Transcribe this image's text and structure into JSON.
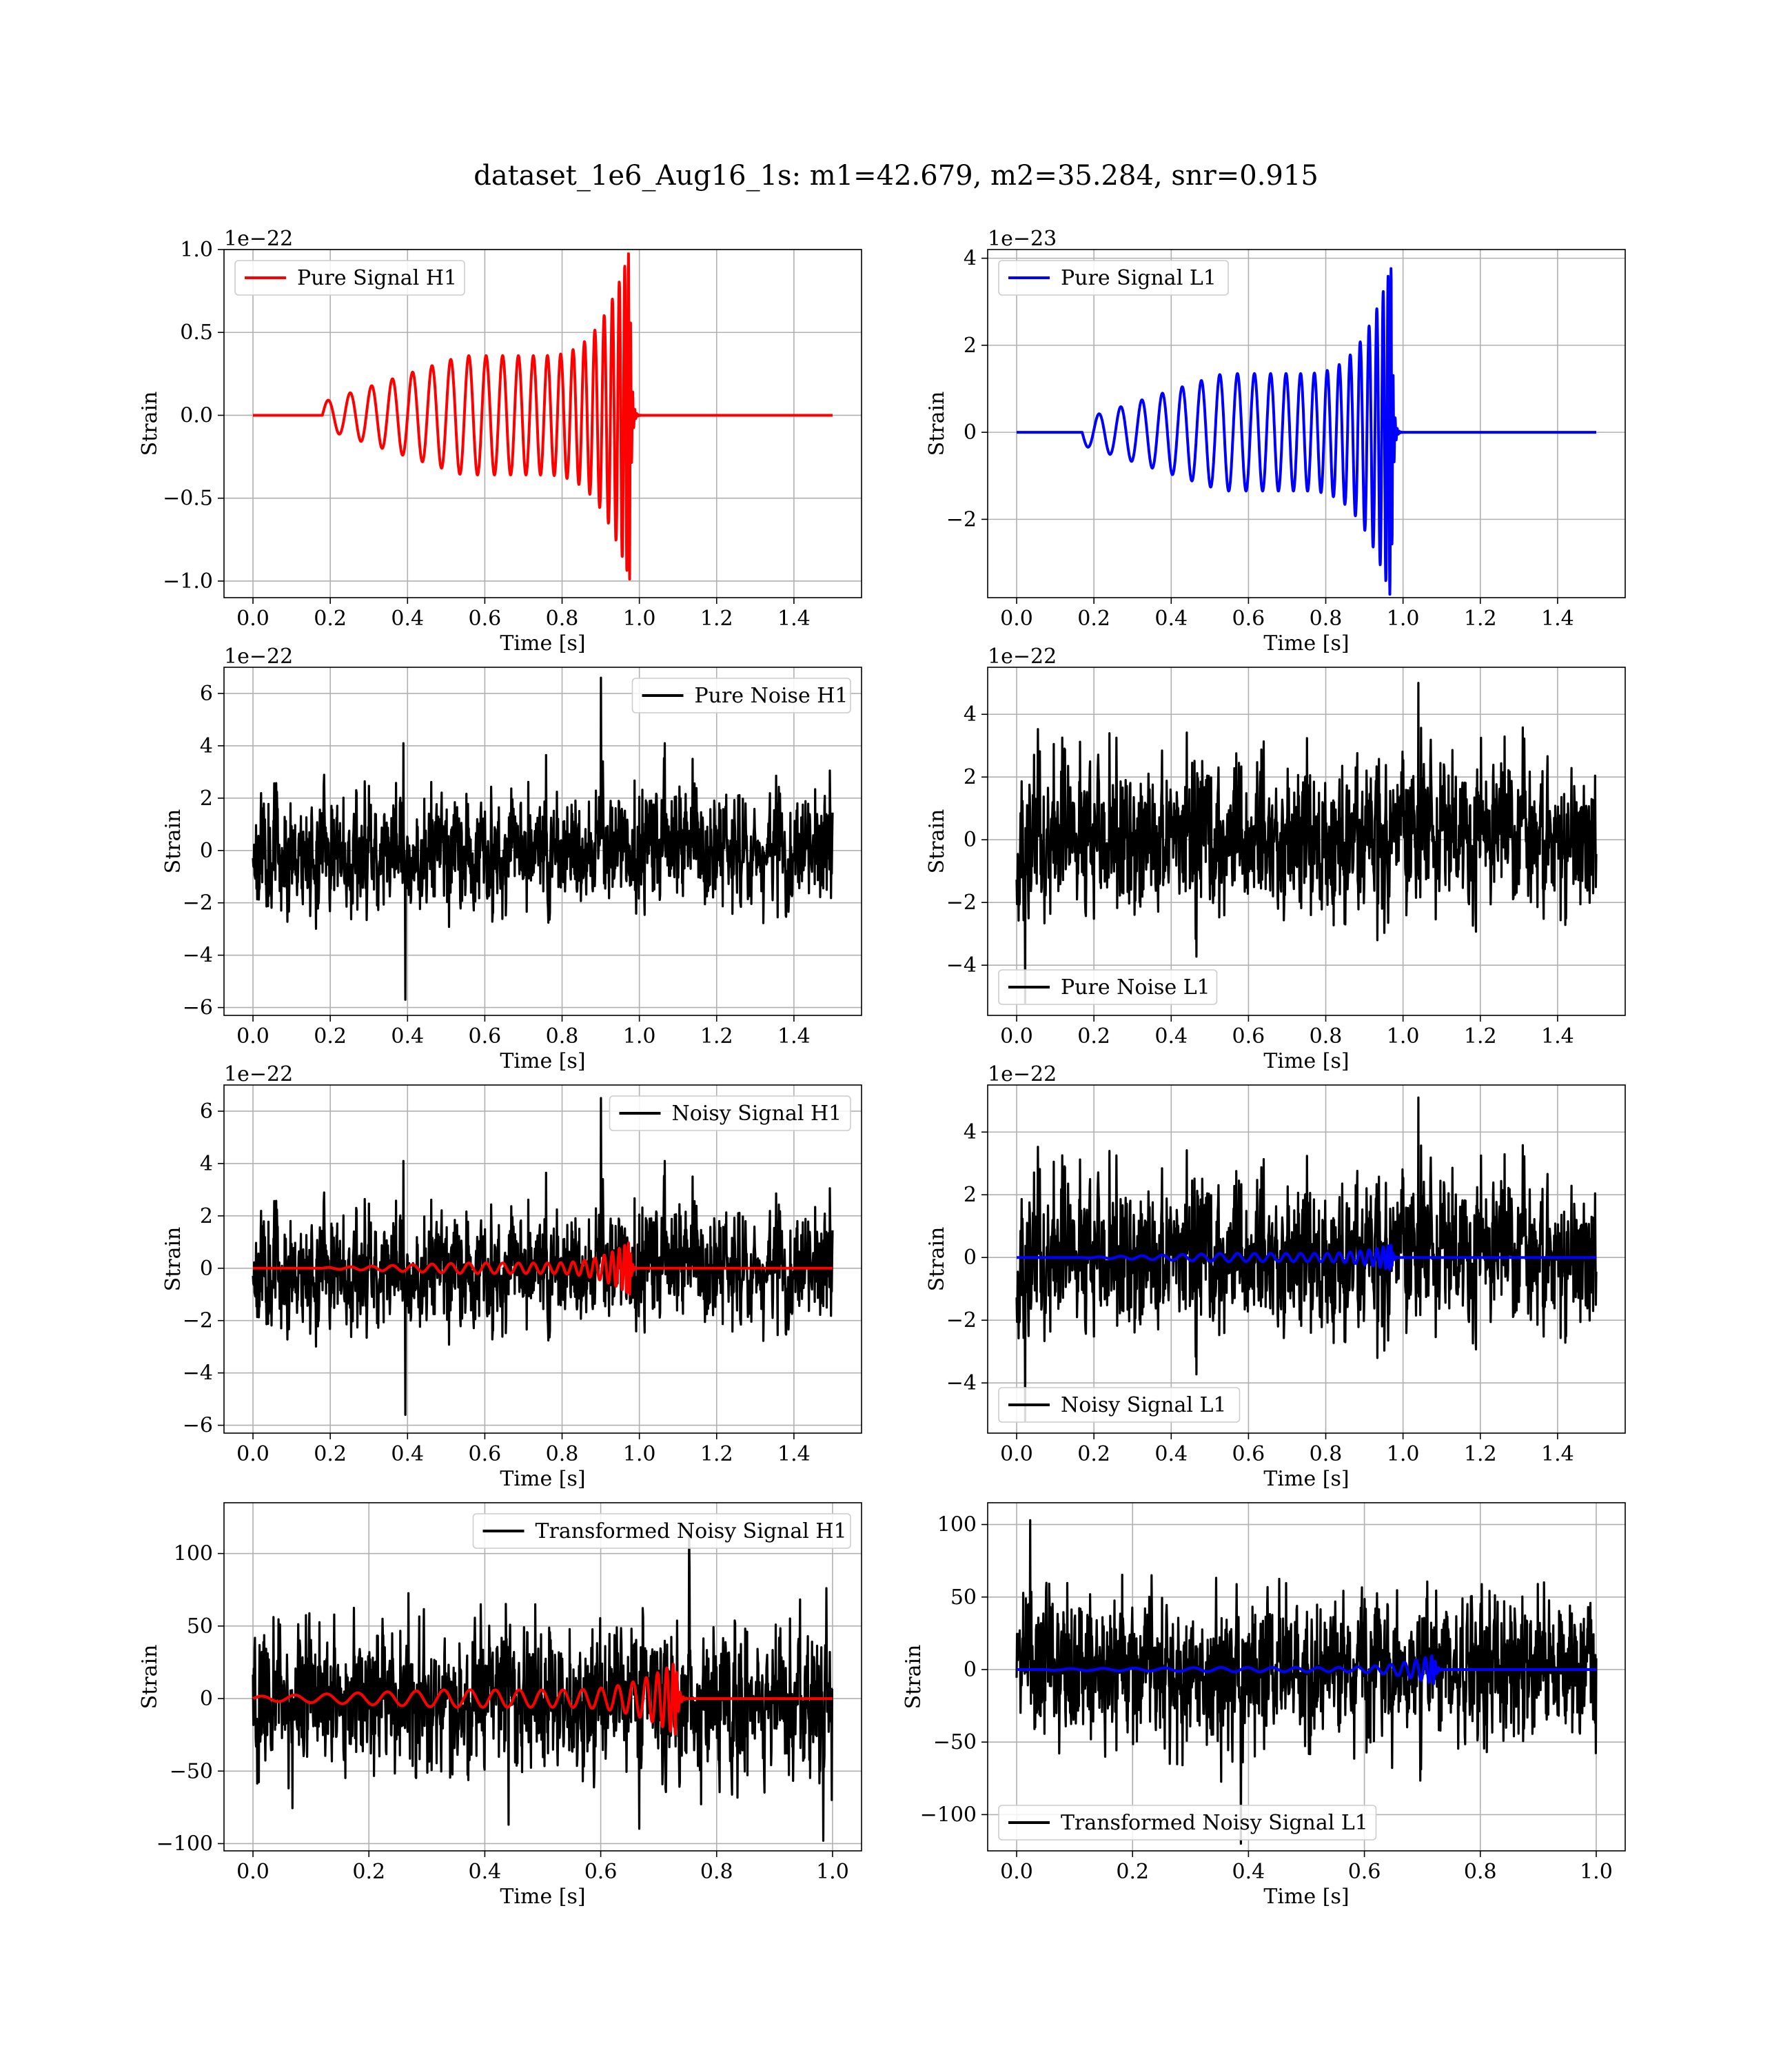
{
  "figure": {
    "title": "dataset_1e6_Aug16_1s: m1=42.679, m2=35.284, snr=0.915"
  },
  "colors": {
    "h1_signal": "#ff0000",
    "l1_signal": "#0000ff",
    "noise": "#000000",
    "grid": "#b0b0b0"
  },
  "chart_data": [
    {
      "type": "line",
      "xlabel": "Time [s]",
      "ylabel": "Strain",
      "offset_text": "1e−22",
      "xlim": [
        -0.075,
        1.575
      ],
      "ylim": [
        -1.1,
        1.0
      ],
      "grid": true,
      "legend_placement": "upper-left",
      "xticks": [
        0,
        0.2,
        0.4,
        0.6,
        0.8,
        1.0,
        1.2,
        1.4
      ],
      "xtick_labels": [
        "0.0",
        "0.2",
        "0.4",
        "0.6",
        "0.8",
        "1.0",
        "1.2",
        "1.4"
      ],
      "yticks": [
        -1.0,
        -0.5,
        0.0,
        0.5,
        1.0
      ],
      "ytick_labels": [
        "−1.0",
        "−0.5",
        "0.0",
        "0.5",
        "1.0"
      ],
      "series": [
        {
          "name": "Pure Signal H1",
          "color": "#ff0000",
          "kind": "chirp",
          "x_range": [
            0,
            1.5
          ],
          "onset": 0.18,
          "merger": 0.975,
          "start_amp": 0.08,
          "inspiral_amp": 0.36,
          "peak_amp": 1.0,
          "sign": 1,
          "seed": 1
        }
      ]
    },
    {
      "type": "line",
      "xlabel": "Time [s]",
      "ylabel": "Strain",
      "offset_text": "1e−23",
      "xlim": [
        -0.075,
        1.575
      ],
      "ylim": [
        -3.8,
        4.2
      ],
      "grid": true,
      "legend_placement": "upper-left",
      "xticks": [
        0,
        0.2,
        0.4,
        0.6,
        0.8,
        1.0,
        1.2,
        1.4
      ],
      "xtick_labels": [
        "0.0",
        "0.2",
        "0.4",
        "0.6",
        "0.8",
        "1.0",
        "1.2",
        "1.4"
      ],
      "yticks": [
        -2,
        0,
        2,
        4
      ],
      "ytick_labels": [
        "−2",
        "0",
        "2",
        "4"
      ],
      "series": [
        {
          "name": "Pure Signal L1",
          "color": "#0000ff",
          "kind": "chirp",
          "x_range": [
            0,
            1.5
          ],
          "onset": 0.17,
          "merger": 0.97,
          "start_amp": 0.3,
          "inspiral_amp": 1.35,
          "peak_amp": 3.85,
          "sign": -1,
          "seed": 2
        }
      ]
    },
    {
      "type": "line",
      "xlabel": "Time [s]",
      "ylabel": "Strain",
      "offset_text": "1e−22",
      "xlim": [
        -0.075,
        1.575
      ],
      "ylim": [
        -6.3,
        7.0
      ],
      "grid": true,
      "legend_placement": "upper-right",
      "xticks": [
        0,
        0.2,
        0.4,
        0.6,
        0.8,
        1.0,
        1.2,
        1.4
      ],
      "xtick_labels": [
        "0.0",
        "0.2",
        "0.4",
        "0.6",
        "0.8",
        "1.0",
        "1.2",
        "1.4"
      ],
      "yticks": [
        -6,
        -4,
        -2,
        0,
        2,
        4,
        6
      ],
      "ytick_labels": [
        "−6",
        "−4",
        "−2",
        "0",
        "2",
        "4",
        "6"
      ],
      "series": [
        {
          "name": "Pure Noise H1",
          "color": "#000000",
          "kind": "noise",
          "x_range": [
            0,
            1.5
          ],
          "sigma": 1.3,
          "max": 6.6,
          "min": -5.7,
          "seed": 11
        }
      ]
    },
    {
      "type": "line",
      "xlabel": "Time [s]",
      "ylabel": "Strain",
      "offset_text": "1e−22",
      "xlim": [
        -0.075,
        1.575
      ],
      "ylim": [
        -5.6,
        5.5
      ],
      "grid": true,
      "legend_placement": "lower-left",
      "xticks": [
        0,
        0.2,
        0.4,
        0.6,
        0.8,
        1.0,
        1.2,
        1.4
      ],
      "xtick_labels": [
        "0.0",
        "0.2",
        "0.4",
        "0.6",
        "0.8",
        "1.0",
        "1.2",
        "1.4"
      ],
      "yticks": [
        -4,
        -2,
        0,
        2,
        4
      ],
      "ytick_labels": [
        "−4",
        "−2",
        "0",
        "2",
        "4"
      ],
      "series": [
        {
          "name": "Pure Noise L1",
          "color": "#000000",
          "kind": "noise",
          "x_range": [
            0,
            1.5
          ],
          "sigma": 1.4,
          "max": 5.0,
          "min": -5.2,
          "seed": 12
        }
      ]
    },
    {
      "type": "line",
      "xlabel": "Time [s]",
      "ylabel": "Strain",
      "offset_text": "1e−22",
      "xlim": [
        -0.075,
        1.575
      ],
      "ylim": [
        -6.3,
        7.0
      ],
      "grid": true,
      "legend_placement": "upper-right",
      "xticks": [
        0,
        0.2,
        0.4,
        0.6,
        0.8,
        1.0,
        1.2,
        1.4
      ],
      "xtick_labels": [
        "0.0",
        "0.2",
        "0.4",
        "0.6",
        "0.8",
        "1.0",
        "1.2",
        "1.4"
      ],
      "yticks": [
        -6,
        -4,
        -2,
        0,
        2,
        4,
        6
      ],
      "ytick_labels": [
        "−6",
        "−4",
        "−2",
        "0",
        "2",
        "4",
        "6"
      ],
      "series": [
        {
          "name": "Noisy Signal H1",
          "color": "#000000",
          "kind": "noise",
          "x_range": [
            0,
            1.5
          ],
          "sigma": 1.3,
          "max": 6.5,
          "min": -5.6,
          "seed": 11
        },
        {
          "name": "",
          "color": "#ff0000",
          "kind": "chirp",
          "x_range": [
            0,
            1.5
          ],
          "onset": 0.18,
          "merger": 0.975,
          "start_amp": 0.02,
          "inspiral_amp": 0.2,
          "peak_amp": 1.0,
          "sign": 1,
          "seed": 1
        }
      ]
    },
    {
      "type": "line",
      "xlabel": "Time [s]",
      "ylabel": "Strain",
      "offset_text": "1e−22",
      "xlim": [
        -0.075,
        1.575
      ],
      "ylim": [
        -5.6,
        5.5
      ],
      "grid": true,
      "legend_placement": "lower-left",
      "xticks": [
        0,
        0.2,
        0.4,
        0.6,
        0.8,
        1.0,
        1.2,
        1.4
      ],
      "xtick_labels": [
        "0.0",
        "0.2",
        "0.4",
        "0.6",
        "0.8",
        "1.0",
        "1.2",
        "1.4"
      ],
      "yticks": [
        -4,
        -2,
        0,
        2,
        4
      ],
      "ytick_labels": [
        "−4",
        "−2",
        "0",
        "2",
        "4"
      ],
      "series": [
        {
          "name": "Noisy Signal L1",
          "color": "#000000",
          "kind": "noise",
          "x_range": [
            0,
            1.5
          ],
          "sigma": 1.4,
          "max": 5.1,
          "min": -5.2,
          "seed": 12
        },
        {
          "name": "",
          "color": "#0000ff",
          "kind": "chirp",
          "x_range": [
            0,
            1.5
          ],
          "onset": 0.17,
          "merger": 0.97,
          "start_amp": 0.01,
          "inspiral_amp": 0.13,
          "peak_amp": 0.4,
          "sign": -1,
          "seed": 2
        }
      ]
    },
    {
      "type": "line",
      "xlabel": "Time [s]",
      "ylabel": "Strain",
      "offset_text": "",
      "xlim": [
        -0.05,
        1.05
      ],
      "ylim": [
        -105,
        135
      ],
      "grid": true,
      "legend_placement": "upper-right",
      "xticks": [
        0,
        0.2,
        0.4,
        0.6,
        0.8,
        1.0
      ],
      "xtick_labels": [
        "0.0",
        "0.2",
        "0.4",
        "0.6",
        "0.8",
        "1.0"
      ],
      "yticks": [
        -100,
        -50,
        0,
        50,
        100
      ],
      "ytick_labels": [
        "−100",
        "−50",
        "0",
        "50",
        "100"
      ],
      "series": [
        {
          "name": "Transformed Noisy Signal H1",
          "color": "#000000",
          "kind": "noise",
          "x_range": [
            0,
            1.0
          ],
          "sigma": 30,
          "max": 117,
          "min": -98,
          "seed": 21
        },
        {
          "name": "",
          "color": "#ff0000",
          "kind": "chirp",
          "x_range": [
            0,
            1.0
          ],
          "onset": 0.0,
          "merger": 0.73,
          "start_amp": 1.5,
          "inspiral_amp": 6,
          "peak_amp": 25,
          "sign": 1,
          "seed": 3
        }
      ]
    },
    {
      "type": "line",
      "xlabel": "Time [s]",
      "ylabel": "Strain",
      "offset_text": "",
      "xlim": [
        -0.05,
        1.05
      ],
      "ylim": [
        -125,
        115
      ],
      "grid": true,
      "legend_placement": "lower-left",
      "xticks": [
        0,
        0.2,
        0.4,
        0.6,
        0.8,
        1.0
      ],
      "xtick_labels": [
        "0.0",
        "0.2",
        "0.4",
        "0.6",
        "0.8",
        "1.0"
      ],
      "yticks": [
        -100,
        -50,
        0,
        50,
        100
      ],
      "ytick_labels": [
        "−100",
        "−50",
        "0",
        "50",
        "100"
      ],
      "series": [
        {
          "name": "Transformed Noisy Signal L1",
          "color": "#000000",
          "kind": "noise",
          "x_range": [
            0,
            1.0
          ],
          "sigma": 28,
          "max": 103,
          "min": -120,
          "seed": 22
        },
        {
          "name": "",
          "color": "#0000ff",
          "kind": "chirp",
          "x_range": [
            0,
            1.0
          ],
          "onset": 0.05,
          "merger": 0.72,
          "start_amp": 0.5,
          "inspiral_amp": 1.5,
          "peak_amp": 10,
          "sign": -1,
          "seed": 4
        }
      ]
    }
  ]
}
